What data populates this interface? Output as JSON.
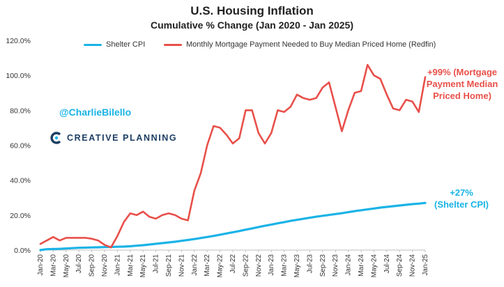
{
  "header": {
    "title": "U.S. Housing Inflation",
    "subtitle": "Cumulative % Change (Jan 2020 - Jan 2025)"
  },
  "branding": {
    "handle": "@CharlieBilello",
    "logo_text": "CREATIVE PLANNING",
    "logo_icon": "creative-planning-c-icon"
  },
  "annotations": {
    "mortgage": [
      "+99% (Mortgage",
      "Payment Median",
      "Priced Home)"
    ],
    "shelter": [
      "+27%",
      "(Shelter CPI)"
    ]
  },
  "colors": {
    "shelter": "#1ab3e6",
    "mortgage": "#e8504a",
    "brand": "#1d3e63"
  },
  "chart_data": {
    "type": "line",
    "title": "U.S. Housing Inflation",
    "subtitle": "Cumulative % Change (Jan 2020 - Jan 2025)",
    "ylim": [
      0,
      120
    ],
    "yticks": [
      "0.0%",
      "20.0%",
      "40.0%",
      "60.0%",
      "80.0%",
      "100.0%",
      "120.0%"
    ],
    "ytick_values": [
      0,
      20,
      40,
      60,
      80,
      100,
      120
    ],
    "grid": false,
    "legend": "top",
    "xticks": [
      "Jan-20",
      "Mar-20",
      "May-20",
      "Jul-20",
      "Sep-20",
      "Nov-20",
      "Jan-21",
      "Mar-21",
      "May-21",
      "Jul-21",
      "Sep-21",
      "Nov-21",
      "Jan-22",
      "Mar-22",
      "May-22",
      "Jul-22",
      "Sep-22",
      "Nov-22",
      "Jan-23",
      "Mar-23",
      "May-23",
      "Jul-23",
      "Sep-23",
      "Nov-23",
      "Jan-24",
      "Mar-24",
      "May-24",
      "Jul-24",
      "Sep-24",
      "Nov-24",
      "Jan-25"
    ],
    "x": [
      "Jan-20",
      "Feb-20",
      "Mar-20",
      "Apr-20",
      "May-20",
      "Jun-20",
      "Jul-20",
      "Aug-20",
      "Sep-20",
      "Oct-20",
      "Nov-20",
      "Dec-20",
      "Jan-21",
      "Feb-21",
      "Mar-21",
      "Apr-21",
      "May-21",
      "Jun-21",
      "Jul-21",
      "Aug-21",
      "Sep-21",
      "Oct-21",
      "Nov-21",
      "Dec-21",
      "Jan-22",
      "Feb-22",
      "Mar-22",
      "Apr-22",
      "May-22",
      "Jun-22",
      "Jul-22",
      "Aug-22",
      "Sep-22",
      "Oct-22",
      "Nov-22",
      "Dec-22",
      "Jan-23",
      "Feb-23",
      "Mar-23",
      "Apr-23",
      "May-23",
      "Jun-23",
      "Jul-23",
      "Aug-23",
      "Sep-23",
      "Oct-23",
      "Nov-23",
      "Dec-23",
      "Jan-24",
      "Feb-24",
      "Mar-24",
      "Apr-24",
      "May-24",
      "Jun-24",
      "Jul-24",
      "Aug-24",
      "Sep-24",
      "Oct-24",
      "Nov-24",
      "Dec-24",
      "Jan-25"
    ],
    "series": [
      {
        "name": "Shelter CPI",
        "color": "#1ab3e6",
        "values": [
          0,
          0.5,
          0.6,
          0.7,
          0.9,
          1.1,
          1.3,
          1.4,
          1.5,
          1.6,
          1.7,
          1.8,
          1.9,
          2.0,
          2.2,
          2.5,
          2.8,
          3.2,
          3.6,
          4.0,
          4.4,
          4.8,
          5.3,
          5.8,
          6.3,
          6.9,
          7.5,
          8.1,
          8.8,
          9.5,
          10.2,
          10.9,
          11.7,
          12.4,
          13.2,
          13.9,
          14.6,
          15.3,
          16.0,
          16.7,
          17.3,
          17.9,
          18.5,
          19.1,
          19.6,
          20.1,
          20.6,
          21.1,
          21.7,
          22.3,
          22.8,
          23.3,
          23.8,
          24.3,
          24.7,
          25.1,
          25.5,
          25.9,
          26.3,
          26.6,
          27.0
        ]
      },
      {
        "name": "Monthly Mortgage Payment Needed to Buy  Median Priced Home (Redfin)",
        "color": "#e8504a",
        "values": [
          3.5,
          5.5,
          7.5,
          5.5,
          7,
          7,
          7,
          7,
          6.5,
          5.5,
          3,
          1.5,
          8,
          16,
          21,
          20,
          22,
          19,
          18,
          20,
          21,
          20,
          18,
          17,
          34,
          44,
          60,
          71,
          70,
          66,
          61,
          64,
          80,
          80,
          67,
          61,
          67,
          80,
          79,
          82,
          89,
          87,
          86,
          87,
          93,
          96,
          82,
          68,
          80,
          90,
          91,
          106,
          100,
          98,
          89,
          81,
          80,
          86,
          85,
          79,
          99
        ]
      }
    ]
  }
}
